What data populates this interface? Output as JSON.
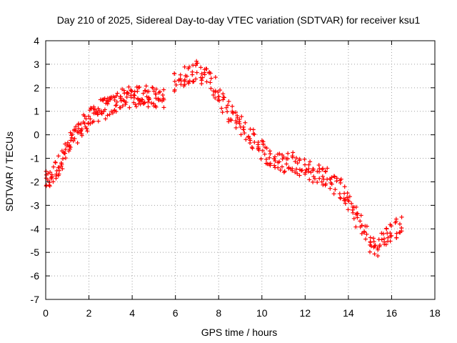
{
  "chart_data": {
    "type": "scatter",
    "title": "Day 210 of 2025, Sidereal Day-to-day VTEC variation (SDTVAR) for receiver ksu1",
    "xlabel": "GPS time / hours",
    "ylabel": "SDTVAR / TECUs",
    "xlim": [
      0,
      18
    ],
    "ylim": [
      -7,
      4
    ],
    "xticks": [
      "0",
      "2",
      "4",
      "6",
      "8",
      "10",
      "12",
      "14",
      "16",
      "18"
    ],
    "yticks": [
      "-7",
      "-6",
      "-5",
      "-4",
      "-3",
      "-2",
      "-1",
      "0",
      "1",
      "2",
      "3",
      "4"
    ],
    "grid": true,
    "marker": "+",
    "color": "#ff0000",
    "series": [
      {
        "name": "SDTVAR",
        "x": [
          0.0,
          0.15,
          0.3,
          0.45,
          0.6,
          0.75,
          0.9,
          1.05,
          1.2,
          1.35,
          1.5,
          1.65,
          1.8,
          1.95,
          2.1,
          2.25,
          2.4,
          2.55,
          2.7,
          2.85,
          3.0,
          3.15,
          3.3,
          3.45,
          3.6,
          3.75,
          3.9,
          4.05,
          4.2,
          4.35,
          4.5,
          4.65,
          4.8,
          4.95,
          5.1,
          5.25,
          5.4,
          6.0,
          6.2,
          6.4,
          6.6,
          6.8,
          7.0,
          7.2,
          7.4,
          7.6,
          7.8,
          8.0,
          8.2,
          8.4,
          8.6,
          8.8,
          9.0,
          9.2,
          9.4,
          9.6,
          9.8,
          10.0,
          10.2,
          10.4,
          10.6,
          10.8,
          11.0,
          11.2,
          11.4,
          11.6,
          11.8,
          12.0,
          12.2,
          12.4,
          12.6,
          12.8,
          13.0,
          13.2,
          13.4,
          13.6,
          13.8,
          14.0,
          14.2,
          14.4,
          14.6,
          14.8,
          15.0,
          15.2,
          15.4,
          15.6,
          15.8,
          16.0,
          16.2,
          16.4
        ],
        "y": [
          -2.0,
          -1.9,
          -1.7,
          -1.5,
          -1.3,
          -1.0,
          -0.8,
          -0.6,
          -0.3,
          -0.1,
          0.1,
          0.3,
          0.5,
          0.6,
          0.7,
          0.9,
          1.0,
          1.1,
          1.1,
          1.2,
          1.2,
          1.3,
          1.4,
          1.5,
          1.5,
          1.6,
          1.6,
          1.7,
          1.6,
          1.7,
          1.7,
          1.7,
          1.6,
          1.6,
          1.6,
          1.5,
          1.5,
          2.3,
          2.4,
          2.5,
          2.6,
          2.7,
          2.7,
          2.6,
          2.5,
          2.3,
          2.0,
          1.7,
          1.3,
          1.0,
          0.8,
          0.6,
          0.4,
          0.2,
          0.0,
          -0.2,
          -0.4,
          -0.6,
          -0.8,
          -1.0,
          -1.1,
          -1.2,
          -1.2,
          -1.1,
          -1.1,
          -1.2,
          -1.3,
          -1.4,
          -1.5,
          -1.6,
          -1.7,
          -1.7,
          -1.8,
          -1.9,
          -2.1,
          -2.3,
          -2.6,
          -2.9,
          -3.2,
          -3.5,
          -3.8,
          -4.2,
          -4.6,
          -4.8,
          -4.7,
          -4.5,
          -4.3,
          -4.2,
          -4.0,
          -3.9
        ]
      }
    ]
  }
}
